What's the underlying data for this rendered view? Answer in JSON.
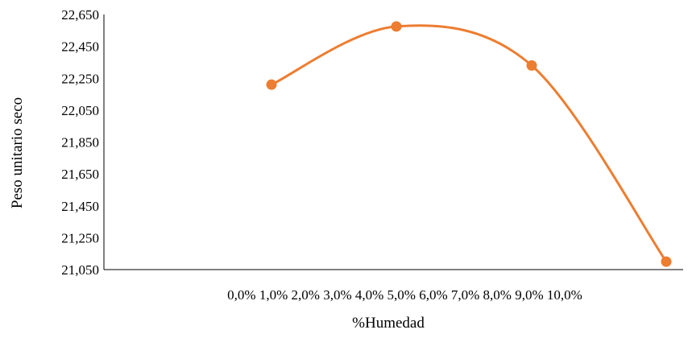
{
  "chart_data": {
    "type": "line",
    "title": "",
    "xlabel": "%Humedad",
    "ylabel": "Peso unitario seco",
    "x_tick_labels": [
      "0,0%",
      "1,0%",
      "2,0%",
      "3,0%",
      "4,0%",
      "5,0%",
      "6,0%",
      "7,0%",
      "8,0%",
      "9,0%",
      "10,0%"
    ],
    "y_tick_labels": [
      "21,050",
      "21,250",
      "21,450",
      "21,650",
      "21,850",
      "22,050",
      "22,250",
      "22,450",
      "22,650"
    ],
    "ylim": [
      21050,
      22650
    ],
    "x_range_percent": [
      0,
      10
    ],
    "series": [
      {
        "x": [
          2.0,
          5.0,
          8.0,
          10.0
        ],
        "y": [
          22210,
          22575,
          22330,
          21100
        ],
        "color": "#ED7D31",
        "smooth": true
      }
    ],
    "grid": false,
    "legend": "none"
  }
}
